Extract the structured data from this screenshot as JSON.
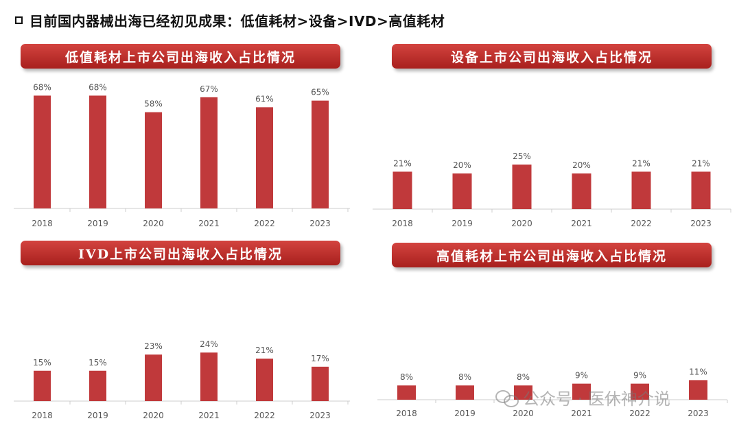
{
  "headline": "目前国内器械出海已经初见成果：低值耗材>设备>IVD>高值耗材",
  "watermark": "公众号 · 医休神介说",
  "colors": {
    "bar": "#c0393b",
    "banner": "#b52d2a",
    "axis": "#cccccc",
    "label": "#555555"
  },
  "chart_data": [
    {
      "type": "bar",
      "title": "低值耗材上市公司出海收入占比情况",
      "categories": [
        "2018",
        "2019",
        "2020",
        "2021",
        "2022",
        "2023"
      ],
      "values": [
        68,
        68,
        58,
        67,
        61,
        65
      ],
      "labels": [
        "68%",
        "68%",
        "58%",
        "67%",
        "61%",
        "65%"
      ],
      "unit": "%",
      "ylim": [
        0,
        75
      ],
      "xlabel": "",
      "ylabel": "",
      "grid": false,
      "legend": "none"
    },
    {
      "type": "bar",
      "title": "设备上市公司出海收入占比情况",
      "categories": [
        "2018",
        "2019",
        "2020",
        "2021",
        "2022",
        "2023"
      ],
      "values": [
        21,
        20,
        25,
        20,
        21,
        21
      ],
      "labels": [
        "21%",
        "20%",
        "25%",
        "20%",
        "21%",
        "21%"
      ],
      "unit": "%",
      "ylim": [
        0,
        75
      ],
      "xlabel": "",
      "ylabel": "",
      "grid": false,
      "legend": "none"
    },
    {
      "type": "bar",
      "title": "IVD上市公司出海收入占比情况",
      "categories": [
        "2018",
        "2019",
        "2020",
        "2021",
        "2022",
        "2023"
      ],
      "values": [
        15,
        15,
        23,
        24,
        21,
        17
      ],
      "labels": [
        "15%",
        "15%",
        "23%",
        "24%",
        "21%",
        "17%"
      ],
      "unit": "%",
      "ylim": [
        0,
        75
      ],
      "xlabel": "",
      "ylabel": "",
      "grid": false,
      "legend": "none"
    },
    {
      "type": "bar",
      "title": "高值耗材上市公司出海收入占比情况",
      "categories": [
        "2018",
        "2019",
        "2020",
        "2021",
        "2022",
        "2023"
      ],
      "values": [
        8,
        8,
        8,
        9,
        9,
        11
      ],
      "labels": [
        "8%",
        "8%",
        "8%",
        "9%",
        "9%",
        "11%"
      ],
      "unit": "%",
      "ylim": [
        0,
        75
      ],
      "xlabel": "",
      "ylabel": "",
      "grid": false,
      "legend": "none"
    }
  ]
}
